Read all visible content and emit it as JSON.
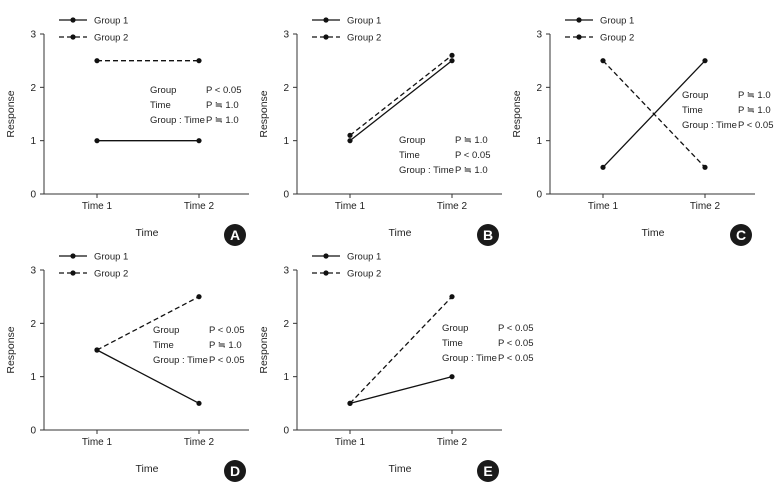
{
  "chart_data": [
    {
      "panel_label": "A",
      "type": "line",
      "categories": [
        "Time 1",
        "Time 2"
      ],
      "series": [
        {
          "name": "Group 1",
          "values": [
            1,
            1
          ],
          "dash": "solid"
        },
        {
          "name": "Group 2",
          "values": [
            2.5,
            2.5
          ],
          "dash": "dashed"
        }
      ],
      "xlabel": "Time",
      "ylabel": "Response",
      "ylim": [
        0,
        3
      ],
      "yticks": [
        "0",
        "1",
        "2",
        "3"
      ],
      "legend_position": "top-left",
      "stats": [
        {
          "term": "Group",
          "p": "P < 0.05"
        },
        {
          "term": "Time",
          "p": "P ≒ 1.0"
        },
        {
          "term": "Group : Time",
          "p": "P ≒ 1.0"
        }
      ]
    },
    {
      "panel_label": "B",
      "type": "line",
      "categories": [
        "Time 1",
        "Time 2"
      ],
      "series": [
        {
          "name": "Group 1",
          "values": [
            1,
            2.5
          ],
          "dash": "solid"
        },
        {
          "name": "Group 2",
          "values": [
            1.1,
            2.6
          ],
          "dash": "dashed"
        }
      ],
      "xlabel": "Time",
      "ylabel": "Response",
      "ylim": [
        0,
        3
      ],
      "yticks": [
        "0",
        "1",
        "2",
        "3"
      ],
      "legend_position": "top-left",
      "stats": [
        {
          "term": "Group",
          "p": "P ≒ 1.0"
        },
        {
          "term": "Time",
          "p": "P < 0.05"
        },
        {
          "term": "Group : Time",
          "p": "P ≒ 1.0"
        }
      ]
    },
    {
      "panel_label": "C",
      "type": "line",
      "categories": [
        "Time 1",
        "Time 2"
      ],
      "series": [
        {
          "name": "Group 1",
          "values": [
            0.5,
            2.5
          ],
          "dash": "solid"
        },
        {
          "name": "Group 2",
          "values": [
            2.5,
            0.5
          ],
          "dash": "dashed"
        }
      ],
      "xlabel": "Time",
      "ylabel": "Response",
      "ylim": [
        0,
        3
      ],
      "yticks": [
        "0",
        "1",
        "2",
        "3"
      ],
      "legend_position": "top-left",
      "stats": [
        {
          "term": "Group",
          "p": "P ≒ 1.0"
        },
        {
          "term": "Time",
          "p": "P ≒ 1.0"
        },
        {
          "term": "Group : Time",
          "p": "P < 0.05"
        }
      ]
    },
    {
      "panel_label": "D",
      "type": "line",
      "categories": [
        "Time 1",
        "Time 2"
      ],
      "series": [
        {
          "name": "Group 1",
          "values": [
            1.5,
            0.5
          ],
          "dash": "solid"
        },
        {
          "name": "Group 2",
          "values": [
            1.5,
            2.5
          ],
          "dash": "dashed"
        }
      ],
      "xlabel": "Time",
      "ylabel": "Response",
      "ylim": [
        0,
        3
      ],
      "yticks": [
        "0",
        "1",
        "2",
        "3"
      ],
      "legend_position": "top-left",
      "stats": [
        {
          "term": "Group",
          "p": "P < 0.05"
        },
        {
          "term": "Time",
          "p": "P ≒ 1.0"
        },
        {
          "term": "Group : Time",
          "p": "P < 0.05"
        }
      ]
    },
    {
      "panel_label": "E",
      "type": "line",
      "categories": [
        "Time 1",
        "Time 2"
      ],
      "series": [
        {
          "name": "Group 1",
          "values": [
            0.5,
            1
          ],
          "dash": "solid"
        },
        {
          "name": "Group 2",
          "values": [
            0.5,
            2.5
          ],
          "dash": "dashed"
        }
      ],
      "xlabel": "Time",
      "ylabel": "Response",
      "ylim": [
        0,
        3
      ],
      "yticks": [
        "0",
        "1",
        "2",
        "3"
      ],
      "legend_position": "top-left",
      "stats": [
        {
          "term": "Group",
          "p": "P < 0.05"
        },
        {
          "term": "Time",
          "p": "P < 0.05"
        },
        {
          "term": "Group : Time",
          "p": "P < 0.05"
        }
      ]
    }
  ],
  "colors": {
    "line": "#111111",
    "axis": "#333333",
    "badge": "#1a1a1a",
    "badge_text": "#ffffff",
    "background": "#ffffff"
  }
}
